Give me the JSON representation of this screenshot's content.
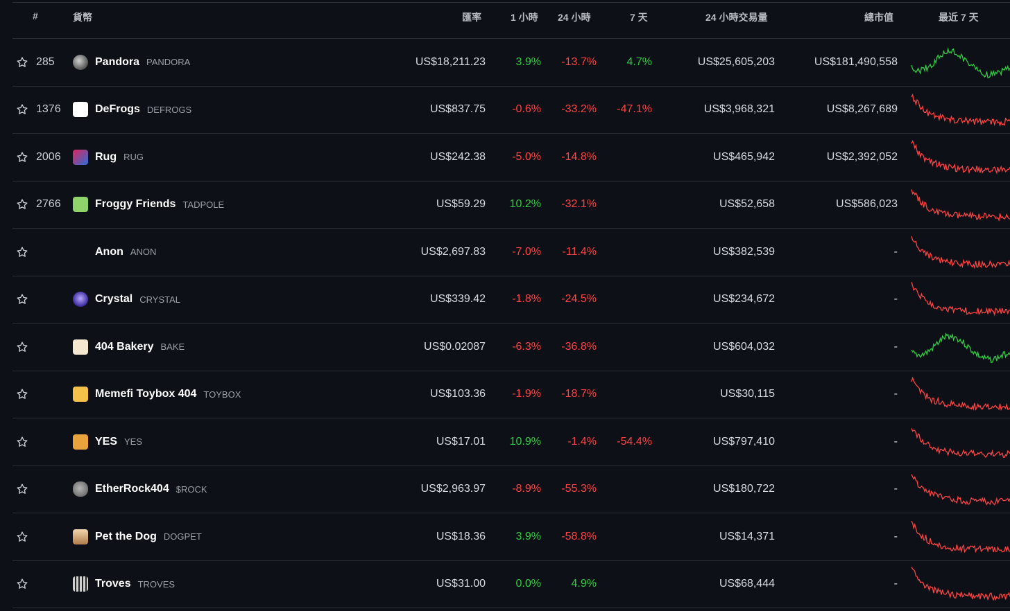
{
  "header": {
    "rank": "#",
    "coin": "貨幣",
    "price": "匯率",
    "h1": "1 小時",
    "h24": "24 小時",
    "d7": "7 天",
    "volume": "24 小時交易量",
    "mcap": "總市值",
    "last7": "最近 7 天"
  },
  "colors": {
    "up": "#2ecc40",
    "down": "#ff4242",
    "background": "#0d1117"
  },
  "rows": [
    {
      "rank": "285",
      "name": "Pandora",
      "symbol": "PANDORA",
      "logo_icon": "pandora-logo-icon",
      "price": "US$18,211.23",
      "h1": "3.9%",
      "h24": "-13.7%",
      "d7": "4.7%",
      "volume": "US$25,605,203",
      "mcap": "US$181,490,558",
      "trend": "up"
    },
    {
      "rank": "1376",
      "name": "DeFrogs",
      "symbol": "DEFROGS",
      "logo_icon": "defrogs-logo-icon",
      "price": "US$837.75",
      "h1": "-0.6%",
      "h24": "-33.2%",
      "d7": "-47.1%",
      "volume": "US$3,968,321",
      "mcap": "US$8,267,689",
      "trend": "down"
    },
    {
      "rank": "2006",
      "name": "Rug",
      "symbol": "RUG",
      "logo_icon": "rug-logo-icon",
      "price": "US$242.38",
      "h1": "-5.0%",
      "h24": "-14.8%",
      "d7": "",
      "volume": "US$465,942",
      "mcap": "US$2,392,052",
      "trend": "down"
    },
    {
      "rank": "2766",
      "name": "Froggy Friends",
      "symbol": "TADPOLE",
      "logo_icon": "froggy-logo-icon",
      "price": "US$59.29",
      "h1": "10.2%",
      "h24": "-32.1%",
      "d7": "",
      "volume": "US$52,658",
      "mcap": "US$586,023",
      "trend": "down"
    },
    {
      "rank": "",
      "name": "Anon",
      "symbol": "ANON",
      "logo_icon": "anon-logo-icon",
      "price": "US$2,697.83",
      "h1": "-7.0%",
      "h24": "-11.4%",
      "d7": "",
      "volume": "US$382,539",
      "mcap": "-",
      "trend": "down"
    },
    {
      "rank": "",
      "name": "Crystal",
      "symbol": "CRYSTAL",
      "logo_icon": "crystal-logo-icon",
      "price": "US$339.42",
      "h1": "-1.8%",
      "h24": "-24.5%",
      "d7": "",
      "volume": "US$234,672",
      "mcap": "-",
      "trend": "down"
    },
    {
      "rank": "",
      "name": "404 Bakery",
      "symbol": "BAKE",
      "logo_icon": "bakery-logo-icon",
      "price": "US$0.02087",
      "h1": "-6.3%",
      "h24": "-36.8%",
      "d7": "",
      "volume": "US$604,032",
      "mcap": "-",
      "trend": "up"
    },
    {
      "rank": "",
      "name": "Memefi Toybox 404",
      "symbol": "TOYBOX",
      "logo_icon": "toybox-logo-icon",
      "price": "US$103.36",
      "h1": "-1.9%",
      "h24": "-18.7%",
      "d7": "",
      "volume": "US$30,115",
      "mcap": "-",
      "trend": "down"
    },
    {
      "rank": "",
      "name": "YES",
      "symbol": "YES",
      "logo_icon": "yes-logo-icon",
      "price": "US$17.01",
      "h1": "10.9%",
      "h24": "-1.4%",
      "d7": "-54.4%",
      "volume": "US$797,410",
      "mcap": "-",
      "trend": "down"
    },
    {
      "rank": "",
      "name": "EtherRock404",
      "symbol": "$ROCK",
      "logo_icon": "rock-logo-icon",
      "price": "US$2,963.97",
      "h1": "-8.9%",
      "h24": "-55.3%",
      "d7": "",
      "volume": "US$180,722",
      "mcap": "-",
      "trend": "down"
    },
    {
      "rank": "",
      "name": "Pet the Dog",
      "symbol": "DOGPET",
      "logo_icon": "dog-logo-icon",
      "price": "US$18.36",
      "h1": "3.9%",
      "h24": "-58.8%",
      "d7": "",
      "volume": "US$14,371",
      "mcap": "-",
      "trend": "down"
    },
    {
      "rank": "",
      "name": "Troves",
      "symbol": "TROVES",
      "logo_icon": "troves-logo-icon",
      "price": "US$31.00",
      "h1": "0.0%",
      "h24": "4.9%",
      "d7": "",
      "volume": "US$68,444",
      "mcap": "-",
      "trend": "down"
    }
  ]
}
